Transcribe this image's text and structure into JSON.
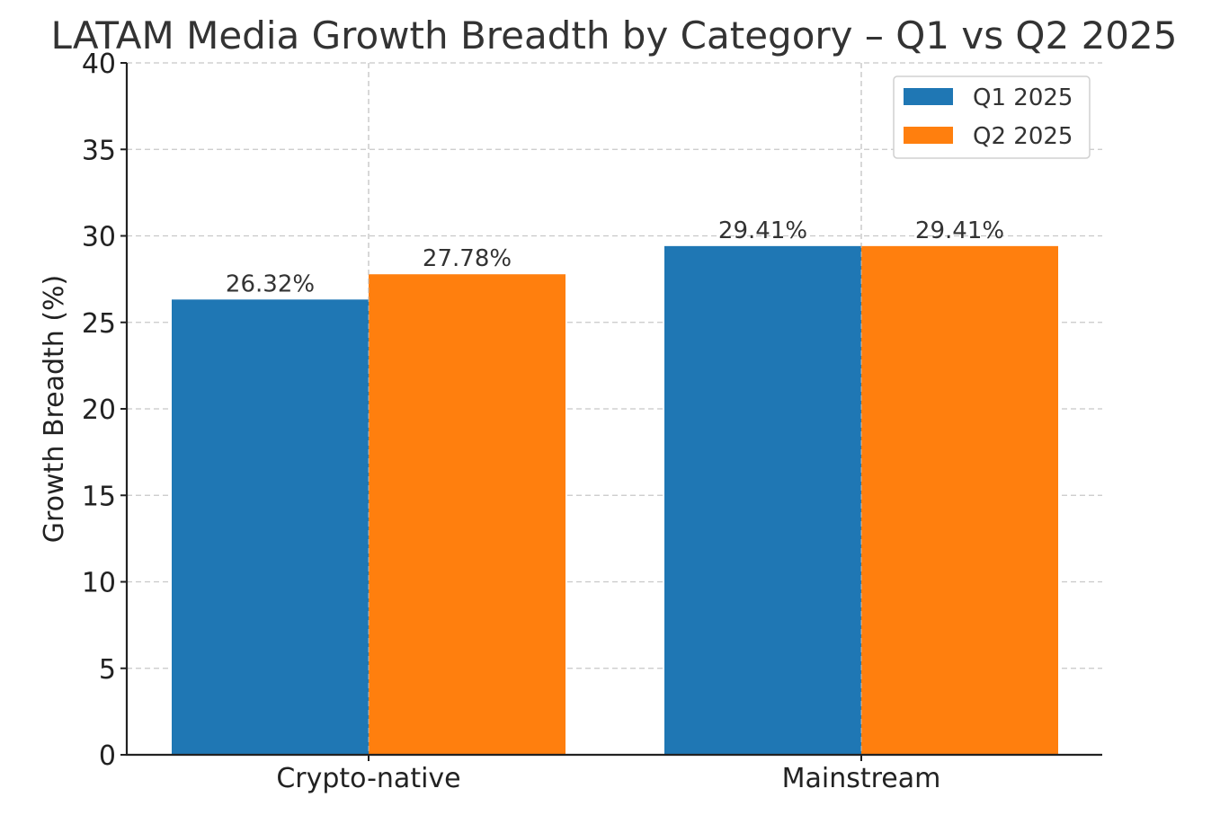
{
  "chart_data": {
    "type": "bar",
    "title": "LATAM Media Growth Breadth by Category – Q1 vs Q2 2025",
    "xlabel": "",
    "ylabel": "Growth Breadth (%)",
    "categories": [
      "Crypto-native",
      "Mainstream"
    ],
    "series": [
      {
        "name": "Q1 2025",
        "values": [
          26.32,
          29.41
        ],
        "labels": [
          "26.32%",
          "29.41%"
        ],
        "color": "#1f77b4"
      },
      {
        "name": "Q2 2025",
        "values": [
          27.78,
          29.41
        ],
        "labels": [
          "27.78%",
          "29.41%"
        ],
        "color": "#ff7f0e"
      }
    ],
    "ylim": [
      0,
      40
    ],
    "yticks": [
      "0",
      "5",
      "10",
      "15",
      "20",
      "25",
      "30",
      "35",
      "40"
    ],
    "grid": true,
    "legend": "top-right"
  }
}
